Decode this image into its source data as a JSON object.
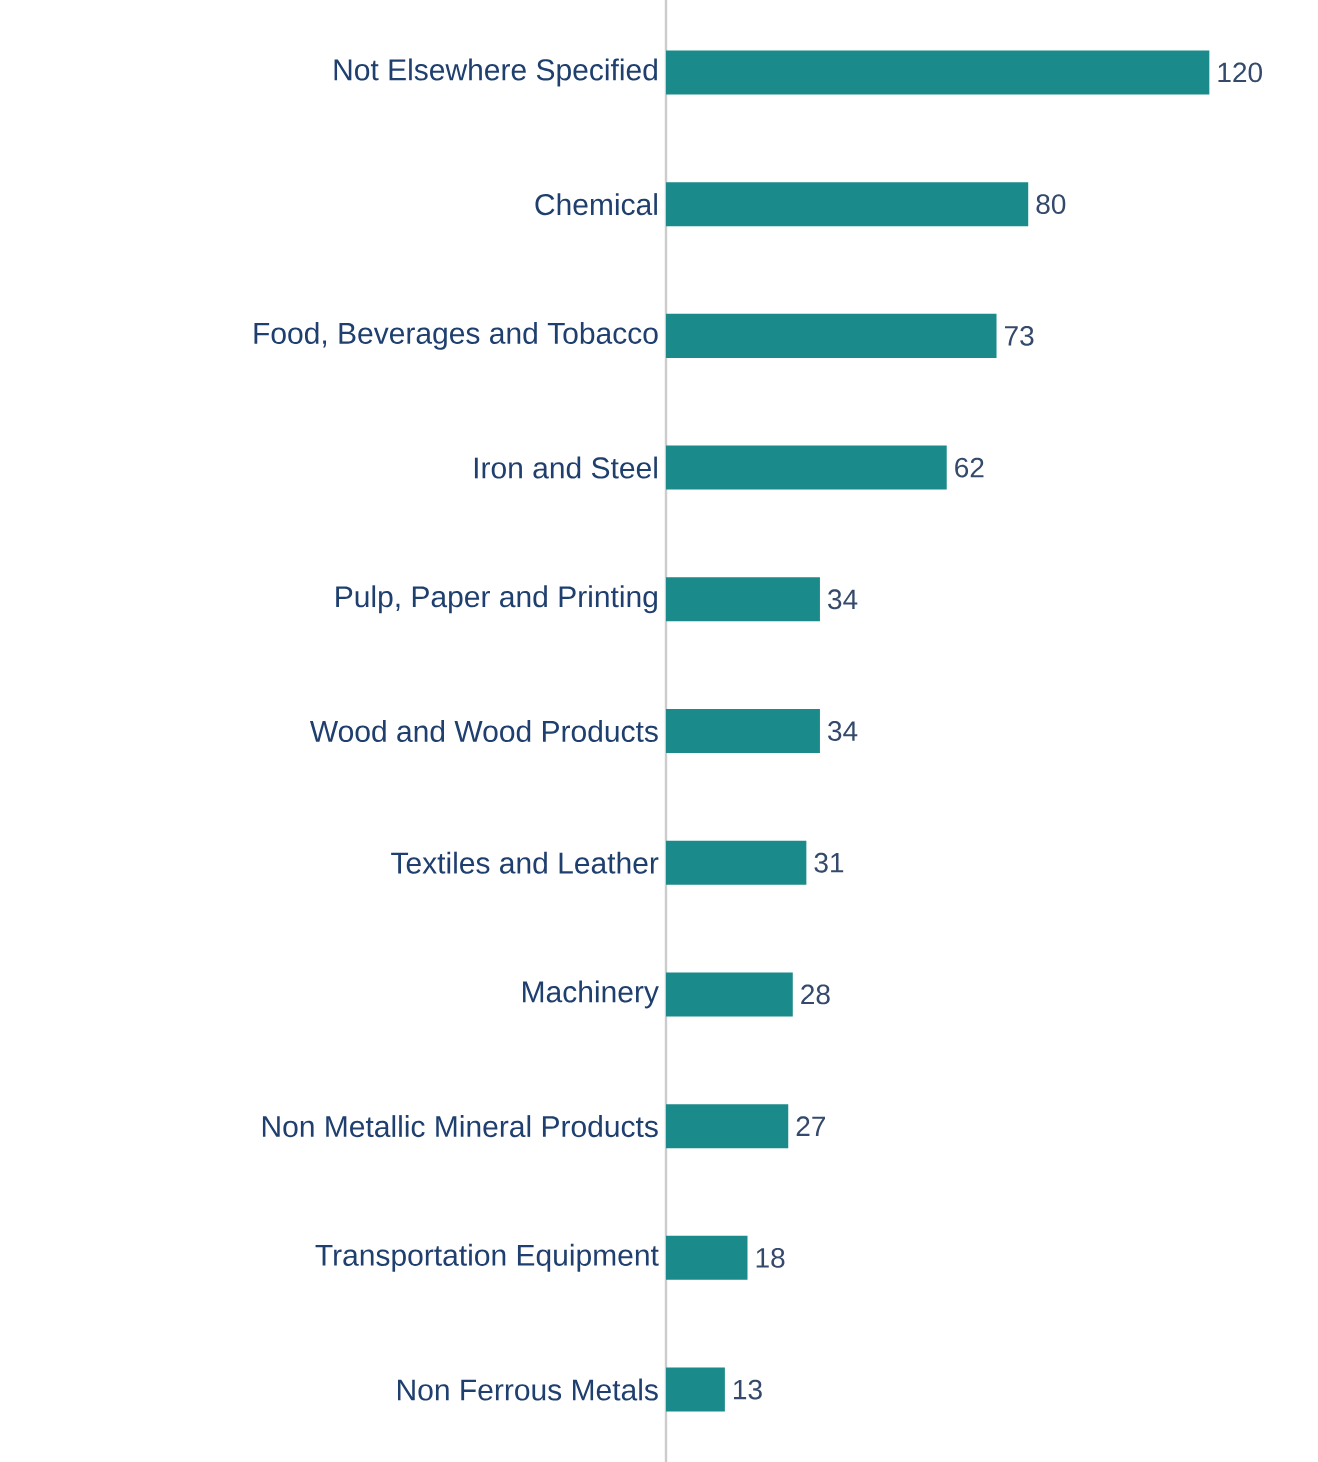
{
  "chart_data": {
    "type": "bar",
    "orientation": "horizontal",
    "data_labels": true,
    "color": "#1a8a8a",
    "categories": [
      "Not Elsewhere Specified",
      "Chemical",
      "Food, Beverages and Tobacco",
      "Iron and Steel",
      "Pulp, Paper and Printing",
      "Wood and Wood Products",
      "Textiles and Leather",
      "Machinery",
      "Non Metallic Mineral Products",
      "Transportation Equipment",
      "Non Ferrous Metals"
    ],
    "values": [
      120,
      80,
      73,
      62,
      34,
      34,
      31,
      28,
      27,
      18,
      13
    ]
  }
}
